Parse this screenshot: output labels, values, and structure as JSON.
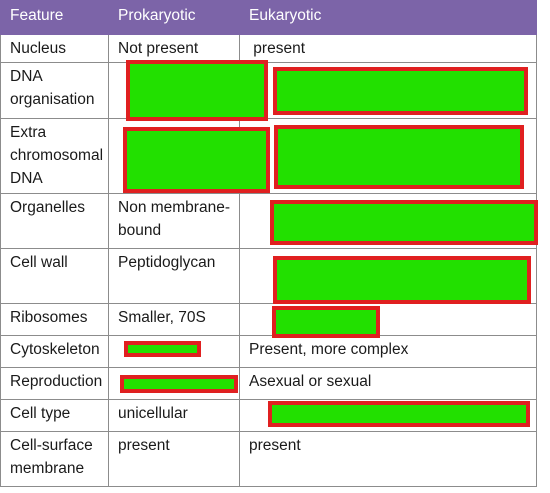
{
  "headers": [
    "Feature",
    "Prokaryotic",
    "Eukaryotic"
  ],
  "rows": [
    {
      "feature": "Nucleus",
      "prokaryotic": "Not present",
      "eukaryotic": " present"
    },
    {
      "feature": "DNA organisation",
      "prokaryotic": "",
      "eukaryotic": ""
    },
    {
      "feature": "Extra chromosomal DNA",
      "prokaryotic": "",
      "eukaryotic": ""
    },
    {
      "feature": "Organelles",
      "prokaryotic": "Non membrane-bound",
      "eukaryotic": ""
    },
    {
      "feature": "Cell wall",
      "prokaryotic": "Peptidoglycan",
      "eukaryotic": ""
    },
    {
      "feature": "Ribosomes",
      "prokaryotic": "Smaller, 70S",
      "eukaryotic": ""
    },
    {
      "feature": "Cytoskeleton",
      "prokaryotic": "",
      "eukaryotic": "Present, more complex"
    },
    {
      "feature": "Reproduction",
      "prokaryotic": "",
      "eukaryotic": "Asexual or sexual"
    },
    {
      "feature": "Cell type",
      "prokaryotic": "unicellular",
      "eukaryotic": ""
    },
    {
      "feature": "Cell-surface membrane",
      "prokaryotic": "present",
      "eukaryotic": "present"
    }
  ],
  "colors": {
    "header_bg": "#7c64a8",
    "mask_fill": "#22e000",
    "mask_border": "#e02020"
  }
}
